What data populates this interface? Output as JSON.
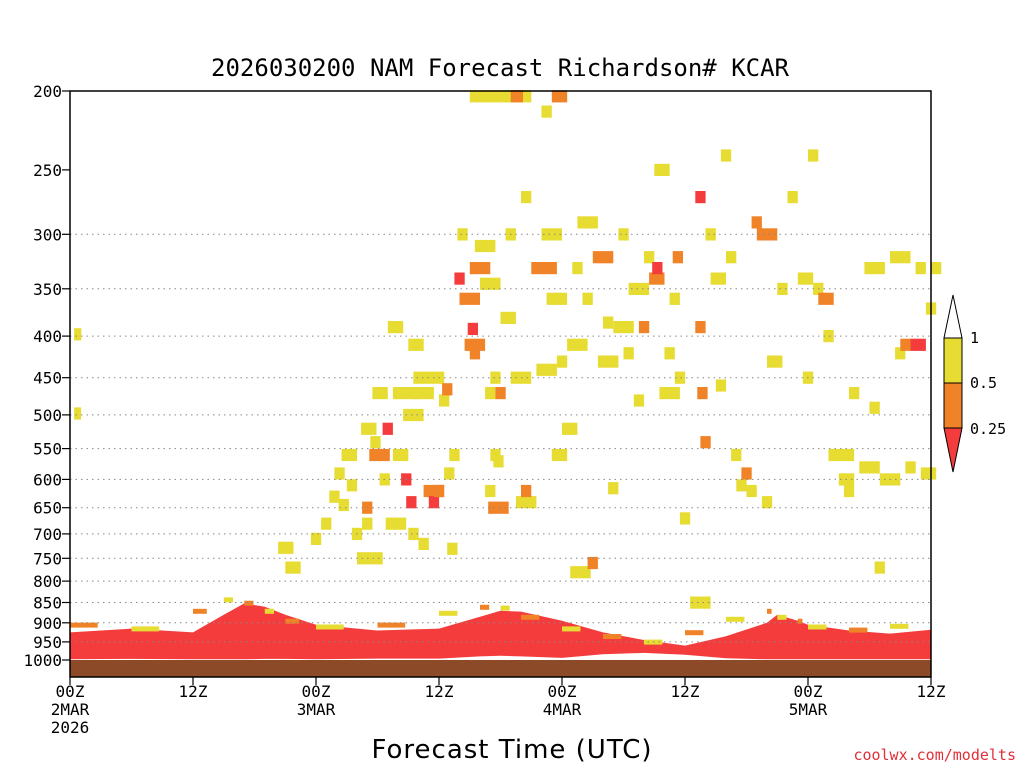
{
  "chart_data": {
    "type": "heatmap",
    "title": "2026030200 NAM Forecast Richardson# KCAR",
    "xlabel": "Forecast Time (UTC)",
    "ylabel": "",
    "credit": "coolwx.com/modelts",
    "x_range_hours": [
      0,
      84
    ],
    "y_range_hpa": [
      1000,
      200
    ],
    "y_ticks": [
      200,
      250,
      300,
      350,
      400,
      450,
      500,
      550,
      600,
      650,
      700,
      750,
      800,
      850,
      900,
      950,
      1000
    ],
    "y_gridlines": [
      300,
      350,
      400,
      450,
      500,
      550,
      600,
      650,
      700,
      750,
      800,
      850,
      900,
      950
    ],
    "x_ticks": [
      {
        "hour": 0,
        "lines": [
          "00Z",
          "2MAR",
          "2026"
        ]
      },
      {
        "hour": 12,
        "lines": [
          "12Z"
        ]
      },
      {
        "hour": 24,
        "lines": [
          "00Z",
          "3MAR"
        ]
      },
      {
        "hour": 36,
        "lines": [
          "12Z"
        ]
      },
      {
        "hour": 48,
        "lines": [
          "00Z",
          "4MAR"
        ]
      },
      {
        "hour": 60,
        "lines": [
          "12Z"
        ]
      },
      {
        "hour": 72,
        "lines": [
          "00Z",
          "5MAR"
        ]
      },
      {
        "hour": 84,
        "lines": [
          "12Z"
        ]
      }
    ],
    "colorbar": {
      "levels": [
        "1",
        "0.5",
        "0.25"
      ],
      "colors": {
        "lt_0_25": "#f53c3c",
        "0_25_to_0_5": "#f08228",
        "0_5_to_1": "#e6dc32",
        "ground": "#8c4a28"
      }
    },
    "low_ri_layer": {
      "description": "Ri < 0.25 near-surface layer",
      "hours": [
        0,
        6,
        12,
        15,
        17,
        19,
        21,
        24,
        30,
        36,
        40,
        42,
        44,
        48,
        52,
        56,
        60,
        64,
        68,
        69,
        71,
        72,
        76,
        80,
        84
      ],
      "top_hpa": [
        925,
        915,
        925,
        880,
        852,
        860,
        880,
        905,
        920,
        915,
        885,
        870,
        872,
        895,
        925,
        945,
        960,
        935,
        900,
        880,
        895,
        905,
        920,
        928,
        918
      ],
      "bottom_hpa": [
        998,
        997,
        998,
        998,
        998,
        997,
        997,
        998,
        996,
        996,
        990,
        988,
        990,
        994,
        984,
        980,
        985,
        995,
        998,
        998,
        998,
        998,
        998,
        998,
        998
      ]
    },
    "cells": [
      [
        0.4,
        398,
        0.7,
        "y"
      ],
      [
        0.4,
        498,
        0.6,
        "y"
      ],
      [
        20.3,
        728,
        1.5,
        "y"
      ],
      [
        21,
        770,
        1.5,
        "y"
      ],
      [
        23.5,
        710,
        1,
        "y"
      ],
      [
        24.5,
        680,
        1,
        "y"
      ],
      [
        25.3,
        630,
        1,
        "y"
      ],
      [
        25.8,
        590,
        1,
        "y"
      ],
      [
        26.2,
        645,
        1,
        "y"
      ],
      [
        26.5,
        560,
        1.5,
        "y"
      ],
      [
        27,
        610,
        1,
        "y"
      ],
      [
        27.5,
        700,
        1,
        "y"
      ],
      [
        28,
        750,
        1.5,
        "y"
      ],
      [
        28.4,
        520,
        1.5,
        "y"
      ],
      [
        28.5,
        650,
        1,
        "o"
      ],
      [
        28.5,
        680,
        1,
        "y"
      ],
      [
        29.2,
        560,
        2,
        "o"
      ],
      [
        29.5,
        470,
        1.5,
        "y"
      ],
      [
        29.5,
        750,
        1,
        "y"
      ],
      [
        29.3,
        540,
        1,
        "y"
      ],
      [
        30.5,
        520,
        1,
        "r"
      ],
      [
        30.2,
        600,
        1,
        "y"
      ],
      [
        30.8,
        680,
        2,
        "y"
      ],
      [
        31,
        390,
        1.5,
        "y"
      ],
      [
        31.5,
        470,
        2.5,
        "y"
      ],
      [
        31.5,
        560,
        1.5,
        "y"
      ],
      [
        32.5,
        500,
        2,
        "y"
      ],
      [
        32.3,
        600,
        1,
        "r"
      ],
      [
        32.8,
        640,
        1,
        "r"
      ],
      [
        33,
        700,
        1,
        "y"
      ],
      [
        33,
        410,
        1.5,
        "y"
      ],
      [
        33.5,
        450,
        3,
        "y"
      ],
      [
        33.5,
        470,
        2,
        "y"
      ],
      [
        34,
        720,
        1,
        "y"
      ],
      [
        34.5,
        620,
        2,
        "o"
      ],
      [
        35,
        640,
        1,
        "r"
      ],
      [
        35.5,
        620,
        1,
        "o"
      ],
      [
        36,
        480,
        1,
        "y"
      ],
      [
        36.3,
        465,
        1,
        "o"
      ],
      [
        36.5,
        590,
        1,
        "y"
      ],
      [
        36.8,
        730,
        1,
        "y"
      ],
      [
        37,
        560,
        1,
        "y"
      ],
      [
        37.5,
        340,
        1,
        "r"
      ],
      [
        37.8,
        300,
        1,
        "y"
      ],
      [
        38,
        360,
        2,
        "o"
      ],
      [
        38.5,
        410,
        2,
        "o"
      ],
      [
        38.8,
        392,
        1,
        "r"
      ],
      [
        39,
        420,
        1,
        "o"
      ],
      [
        39,
        330,
        2,
        "o"
      ],
      [
        39.5,
        310,
        2,
        "y"
      ],
      [
        40,
        345,
        2,
        "y"
      ],
      [
        40.5,
        620,
        1,
        "y"
      ],
      [
        40.5,
        470,
        1,
        "y"
      ],
      [
        40.8,
        650,
        2,
        "o"
      ],
      [
        41,
        560,
        1,
        "y"
      ],
      [
        41,
        450,
        1,
        "y"
      ],
      [
        41.5,
        470,
        1,
        "o"
      ],
      [
        41.3,
        570,
        1,
        "y"
      ],
      [
        42,
        380,
        1.5,
        "y"
      ],
      [
        42.5,
        300,
        1,
        "y"
      ],
      [
        43,
        450,
        2,
        "y"
      ],
      [
        43.5,
        640,
        2,
        "y"
      ],
      [
        44,
        620,
        1,
        "o"
      ],
      [
        44,
        270,
        1,
        "y"
      ],
      [
        45,
        330,
        2.5,
        "o"
      ],
      [
        45.5,
        440,
        2,
        "y"
      ],
      [
        46,
        300,
        2,
        "y"
      ],
      [
        46.5,
        360,
        2,
        "y"
      ],
      [
        47,
        560,
        1.5,
        "y"
      ],
      [
        47.5,
        430,
        1,
        "y"
      ],
      [
        48,
        520,
        1.5,
        "y"
      ],
      [
        48.5,
        410,
        2,
        "y"
      ],
      [
        48.8,
        780,
        2,
        "y"
      ],
      [
        49,
        330,
        1,
        "y"
      ],
      [
        49.5,
        290,
        2,
        "y"
      ],
      [
        50,
        360,
        1,
        "y"
      ],
      [
        50.5,
        760,
        1,
        "o"
      ],
      [
        51,
        320,
        2,
        "o"
      ],
      [
        51.5,
        430,
        2,
        "y"
      ],
      [
        52,
        385,
        1,
        "y"
      ],
      [
        52.5,
        615,
        1,
        "y"
      ],
      [
        53,
        390,
        2,
        "y"
      ],
      [
        53.5,
        300,
        1,
        "y"
      ],
      [
        54,
        420,
        1,
        "y"
      ],
      [
        54.5,
        350,
        2,
        "y"
      ],
      [
        55,
        480,
        1,
        "y"
      ],
      [
        55.5,
        390,
        1,
        "o"
      ],
      [
        56,
        320,
        1,
        "y"
      ],
      [
        56.5,
        340,
        1.5,
        "o"
      ],
      [
        56.8,
        330,
        1,
        "r"
      ],
      [
        57,
        250,
        1.5,
        "y"
      ],
      [
        57.5,
        470,
        2,
        "y"
      ],
      [
        58,
        420,
        1,
        "y"
      ],
      [
        58.5,
        360,
        1,
        "y"
      ],
      [
        58.8,
        320,
        1,
        "o"
      ],
      [
        59,
        450,
        1,
        "y"
      ],
      [
        59.5,
        670,
        1,
        "y"
      ],
      [
        60.5,
        850,
        2,
        "y"
      ],
      [
        61,
        390,
        1,
        "o"
      ],
      [
        61,
        270,
        1,
        "r"
      ],
      [
        61.2,
        470,
        1,
        "o"
      ],
      [
        61.5,
        540,
        1,
        "o"
      ],
      [
        62,
        300,
        1,
        "y"
      ],
      [
        62.5,
        340,
        1.5,
        "y"
      ],
      [
        63,
        460,
        1,
        "y"
      ],
      [
        63.5,
        240,
        1,
        "y"
      ],
      [
        64,
        320,
        1,
        "y"
      ],
      [
        64.5,
        560,
        1,
        "y"
      ],
      [
        65,
        610,
        1,
        "y"
      ],
      [
        65.5,
        590,
        1,
        "o"
      ],
      [
        66,
        620,
        1,
        "y"
      ],
      [
        66.5,
        290,
        1,
        "o"
      ],
      [
        67,
        300,
        2,
        "o"
      ],
      [
        67.5,
        640,
        1,
        "y"
      ],
      [
        68,
        430,
        1.5,
        "y"
      ],
      [
        69,
        350,
        1,
        "y"
      ],
      [
        70,
        270,
        1,
        "y"
      ],
      [
        71,
        340,
        1.5,
        "y"
      ],
      [
        71.5,
        450,
        1,
        "y"
      ],
      [
        72,
        240,
        1,
        "y"
      ],
      [
        72.5,
        350,
        1,
        "y"
      ],
      [
        73,
        360,
        1.5,
        "o"
      ],
      [
        73.5,
        400,
        1,
        "y"
      ],
      [
        74,
        560,
        2.5,
        "y"
      ],
      [
        75,
        600,
        1.5,
        "y"
      ],
      [
        75.5,
        620,
        1,
        "y"
      ],
      [
        76,
        470,
        1,
        "y"
      ],
      [
        77,
        580,
        2,
        "y"
      ],
      [
        77.5,
        330,
        2,
        "y"
      ],
      [
        78,
        490,
        1,
        "y"
      ],
      [
        78.5,
        770,
        1,
        "y"
      ],
      [
        79,
        600,
        2,
        "y"
      ],
      [
        80,
        320,
        2,
        "y"
      ],
      [
        80.5,
        420,
        1,
        "y"
      ],
      [
        81,
        410,
        1,
        "o"
      ],
      [
        81.5,
        580,
        1,
        "y"
      ],
      [
        82,
        410,
        1.5,
        "r"
      ],
      [
        82.5,
        330,
        1,
        "y"
      ],
      [
        83,
        590,
        1.5,
        "y"
      ],
      [
        83.5,
        370,
        1,
        "y"
      ],
      [
        84,
        330,
        1,
        "y"
      ],
      [
        39,
        203,
        6,
        "y"
      ],
      [
        43,
        203,
        1.2,
        "o"
      ],
      [
        47,
        203,
        1.5,
        "o"
      ],
      [
        46,
        212,
        1,
        "y"
      ]
    ]
  }
}
